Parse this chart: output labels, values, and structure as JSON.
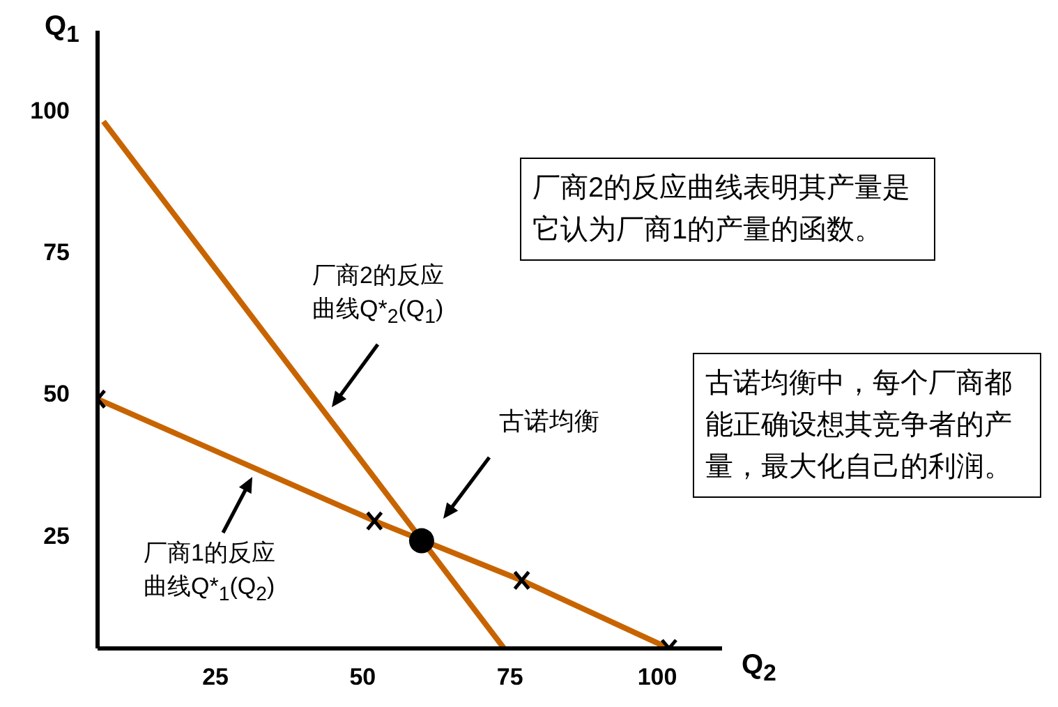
{
  "chart_data": {
    "type": "line",
    "xlabel": "Q$_{2}$",
    "ylabel": "Q$_{1}$",
    "xlim": [
      5,
      111
    ],
    "ylim": [
      5,
      114
    ],
    "xticks": [
      25,
      50,
      75,
      100
    ],
    "yticks": [
      25,
      50,
      75,
      100
    ],
    "grid": false,
    "series": [
      {
        "name": "厂商2的反应曲线Q*$_{2}$(Q$_{1}$)",
        "color": "#c86400",
        "marker": "none",
        "x": [
          6,
          74
        ],
        "values": [
          98,
          5
        ]
      },
      {
        "name": "厂商1的反应曲线Q*$_{1}$(Q$_{2}$)",
        "color": "#c86400",
        "marker": "cross",
        "x": [
          5,
          52,
          77,
          102
        ],
        "values": [
          49,
          27.5,
          17,
          5
        ]
      },
      {
        "type": "scatter",
        "color": "#000000",
        "marker": "circle",
        "x": [
          60
        ],
        "values": [
          24
        ]
      }
    ],
    "annotations": [
      "古诺均衡",
      "厂商2的反应曲线表明其产量是它认为厂商1的产量的函数。",
      "古诺均衡中，每个厂商都能正确设想其竞争者的产量，最大化自己的利润。"
    ]
  }
}
